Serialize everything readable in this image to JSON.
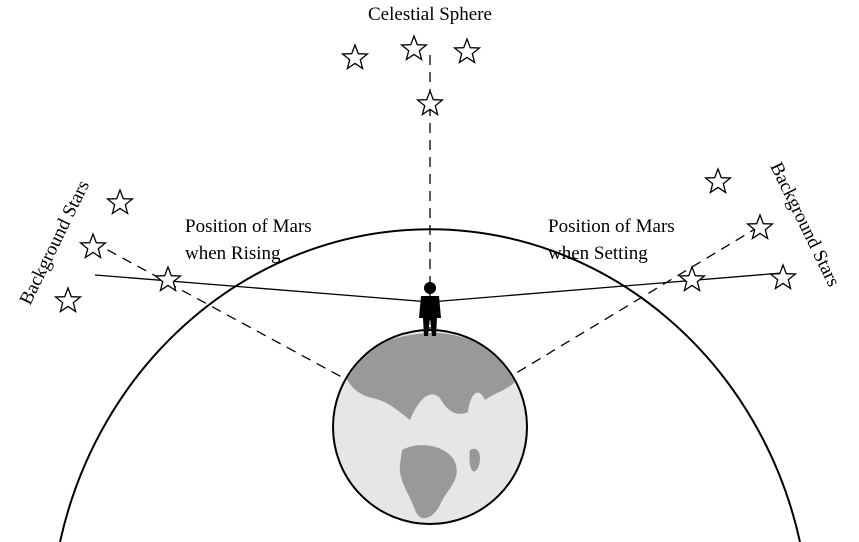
{
  "title": "Celestial Sphere",
  "labels": {
    "background_stars_left": "Background Stars",
    "background_stars_right": "Background Stars",
    "rising": [
      "Position of Mars",
      "when Rising"
    ],
    "setting": [
      "Position of Mars",
      "when Setting"
    ]
  }
}
